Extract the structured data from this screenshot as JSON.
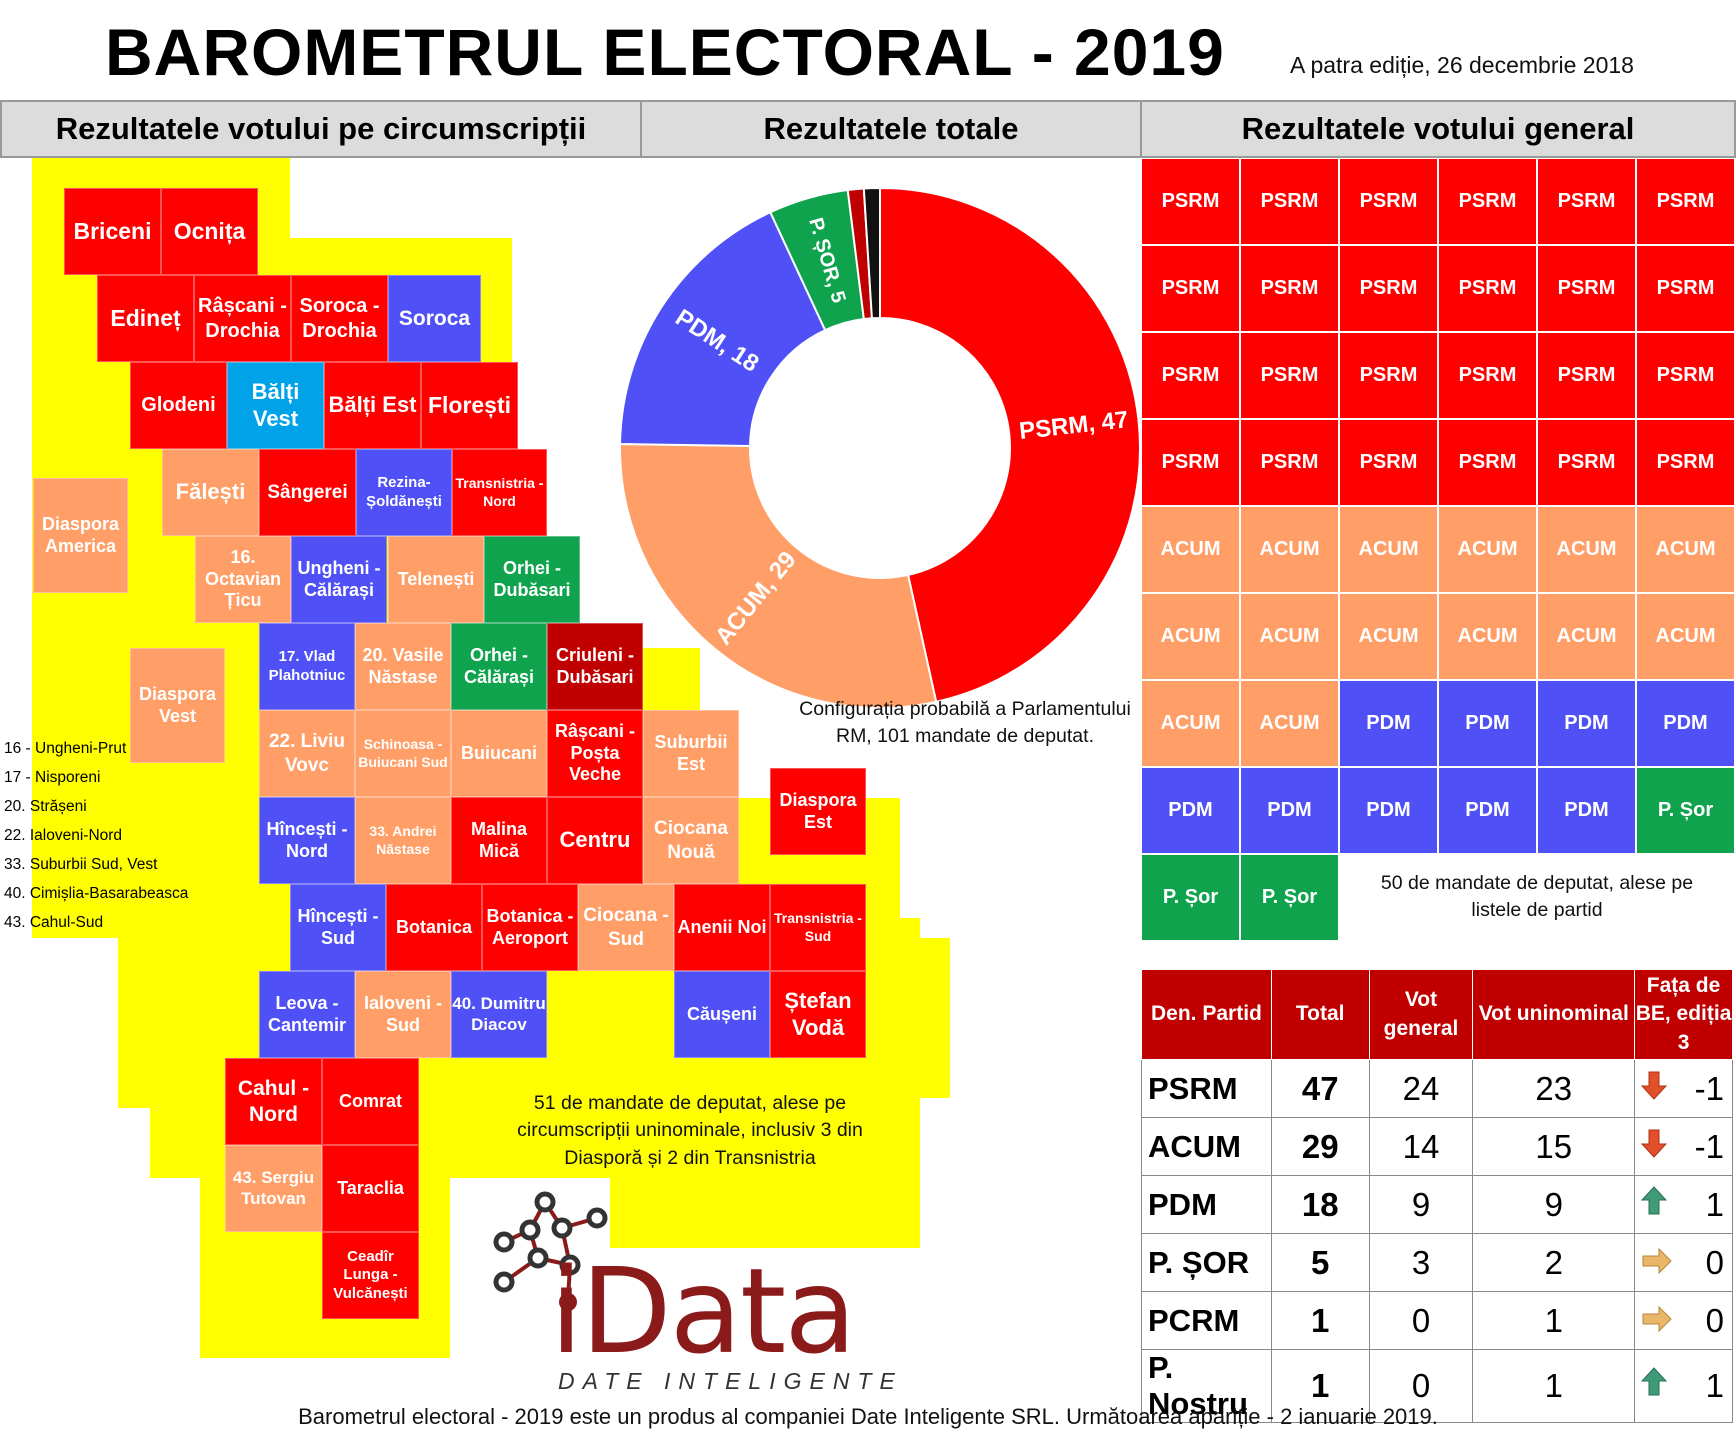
{
  "header": {
    "title": "BAROMETRUL ELECTORAL - 2019",
    "edition": "A patra ediție, 26 decembrie 2018"
  },
  "sections": {
    "districts": "Rezultatele votului pe circumscripții",
    "totals": "Rezultatele totale",
    "general": "Rezultatele votului general"
  },
  "colors": {
    "PSRM": "#ff0000",
    "ACUM": "#ff9e66",
    "PDM": "#4f50f5",
    "SOR": "#0fa34e",
    "PCRM": "#c00000",
    "PN": "#111111",
    "BALTI_VEST": "#00a2e8",
    "highlight": "#ffff00"
  },
  "districts": [
    {
      "label": "Briceni",
      "party": "PSRM"
    },
    {
      "label": "Ocnița",
      "party": "PSRM"
    },
    {
      "label": "Edineț",
      "party": "PSRM"
    },
    {
      "label": "Râșcani - Drochia",
      "party": "PSRM"
    },
    {
      "label": "Soroca - Drochia",
      "party": "PSRM"
    },
    {
      "label": "Soroca",
      "party": "PDM"
    },
    {
      "label": "Glodeni",
      "party": "PSRM"
    },
    {
      "label": "Bălți Vest",
      "party": "BALTI_VEST"
    },
    {
      "label": "Bălți Est",
      "party": "PSRM"
    },
    {
      "label": "Florești",
      "party": "PSRM"
    },
    {
      "label": "Diaspora America",
      "party": "ACUM"
    },
    {
      "label": "Fălești",
      "party": "ACUM"
    },
    {
      "label": "Sângerei",
      "party": "PSRM"
    },
    {
      "label": "Rezina-Șoldănești",
      "party": "PDM"
    },
    {
      "label": "Transnistria - Nord",
      "party": "PSRM"
    },
    {
      "label": "16. Octavian Țicu",
      "party": "ACUM"
    },
    {
      "label": "Ungheni - Călărași",
      "party": "PDM"
    },
    {
      "label": "Telenești",
      "party": "ACUM"
    },
    {
      "label": "Orhei - Dubăsari",
      "party": "SOR"
    },
    {
      "label": "Diaspora Vest",
      "party": "ACUM"
    },
    {
      "label": "17. Vlad Plahotniuc",
      "party": "PDM"
    },
    {
      "label": "20. Vasile Năstase",
      "party": "ACUM"
    },
    {
      "label": "Orhei - Călărași",
      "party": "SOR"
    },
    {
      "label": "Criuleni - Dubăsari",
      "party": "PCRM"
    },
    {
      "label": "22. Liviu Vovc",
      "party": "ACUM"
    },
    {
      "label": "Schinoasa - Buiucani Sud",
      "party": "ACUM"
    },
    {
      "label": "Buiucani",
      "party": "ACUM"
    },
    {
      "label": "Râșcani - Poșta Veche",
      "party": "PSRM"
    },
    {
      "label": "Suburbii Est",
      "party": "ACUM"
    },
    {
      "label": "Diaspora Est",
      "party": "PSRM"
    },
    {
      "label": "Hîncești - Nord",
      "party": "PDM"
    },
    {
      "label": "33. Andrei Năstase",
      "party": "ACUM"
    },
    {
      "label": "Malina Mică",
      "party": "PSRM"
    },
    {
      "label": "Centru",
      "party": "PSRM"
    },
    {
      "label": "Ciocana Nouă",
      "party": "ACUM"
    },
    {
      "label": "Hîncești - Sud",
      "party": "PDM"
    },
    {
      "label": "Botanica",
      "party": "PSRM"
    },
    {
      "label": "Botanica - Aeroport",
      "party": "PSRM"
    },
    {
      "label": "Ciocana - Sud",
      "party": "ACUM"
    },
    {
      "label": "Anenii Noi",
      "party": "PSRM"
    },
    {
      "label": "Transnistria - Sud",
      "party": "PSRM"
    },
    {
      "label": "Leova - Cantemir",
      "party": "PDM"
    },
    {
      "label": "Ialoveni - Sud",
      "party": "ACUM"
    },
    {
      "label": "40. Dumitru Diacov",
      "party": "PDM"
    },
    {
      "label": "Căușeni",
      "party": "PDM"
    },
    {
      "label": "Ștefan Vodă",
      "party": "PSRM"
    },
    {
      "label": "Cahul - Nord",
      "party": "PSRM"
    },
    {
      "label": "Comrat",
      "party": "PSRM"
    },
    {
      "label": "43. Sergiu Tutovan",
      "party": "ACUM"
    },
    {
      "label": "Taraclia",
      "party": "PSRM"
    },
    {
      "label": "Ceadîr Lunga - Vulcănești",
      "party": "PSRM"
    }
  ],
  "legend": [
    "16 - Ungheni-Prut",
    "17 - Nisporeni",
    "20. Strășeni",
    "22. Ialoveni-Nord",
    "33. Suburbii Sud, Vest",
    "40. Cimișlia-Basarabeasca",
    "43. Cahul-Sud"
  ],
  "notes": {
    "districts": "51 de mandate de deputat, alese pe\ncircumscripții uninominale, inclusiv 3 din\nDiasporă și 2 din Transnistria",
    "parliament": "Configurația probabilă a Parlamentului\nRM, 101 mandate de deputat.",
    "lists": "50 de mandate de deputat, alese pe\nlistele de partid"
  },
  "chart_data": {
    "type": "pie",
    "variant": "donut",
    "title": "Rezultatele totale",
    "slices": [
      {
        "name": "PSRM",
        "value": 47,
        "label": "PSRM, 47"
      },
      {
        "name": "ACUM",
        "value": 29,
        "label": "ACUM, 29"
      },
      {
        "name": "PDM",
        "value": 18,
        "label": "PDM, 18"
      },
      {
        "name": "P. ȘOR",
        "value": 5,
        "label": "P. ȘOR, 5"
      },
      {
        "name": "PCRM",
        "value": 1,
        "label": ""
      },
      {
        "name": "P. Nostru",
        "value": 1,
        "label": ""
      }
    ],
    "total": 101
  },
  "general_seats": {
    "labels": {
      "PSRM": "PSRM",
      "ACUM": "ACUM",
      "PDM": "PDM",
      "SOR": "P. Șor"
    },
    "counts": [
      {
        "party": "PSRM",
        "n": 24
      },
      {
        "party": "ACUM",
        "n": 14
      },
      {
        "party": "PDM",
        "n": 9
      },
      {
        "party": "SOR",
        "n": 3
      }
    ]
  },
  "table": {
    "headers": [
      "Den. Partid",
      "Total",
      "Vot general",
      "Vot uninominal",
      "Fața de BE, ediția 3"
    ],
    "rows": [
      {
        "party": "PSRM",
        "total": "47",
        "general": "24",
        "uninominal": "23",
        "trend": "down",
        "change": "-1"
      },
      {
        "party": "ACUM",
        "total": "29",
        "general": "14",
        "uninominal": "15",
        "trend": "down",
        "change": "-1"
      },
      {
        "party": "PDM",
        "total": "18",
        "general": "9",
        "uninominal": "9",
        "trend": "up",
        "change": "1"
      },
      {
        "party": "P. ȘOR",
        "total": "5",
        "general": "3",
        "uninominal": "2",
        "trend": "same",
        "change": "0"
      },
      {
        "party": "PCRM",
        "total": "1",
        "general": "0",
        "uninominal": "1",
        "trend": "same",
        "change": "0"
      },
      {
        "party": "P. Nostru",
        "total": "1",
        "general": "0",
        "uninominal": "1",
        "trend": "up",
        "change": "1"
      }
    ]
  },
  "logo": {
    "name": "iData",
    "tagline": "DATE INTELIGENTE"
  },
  "footer": "Barometrul electoral - 2019 este un produs al companiei Date Inteligente SRL. Următoarea apariție - 2 ianuarie 2019."
}
